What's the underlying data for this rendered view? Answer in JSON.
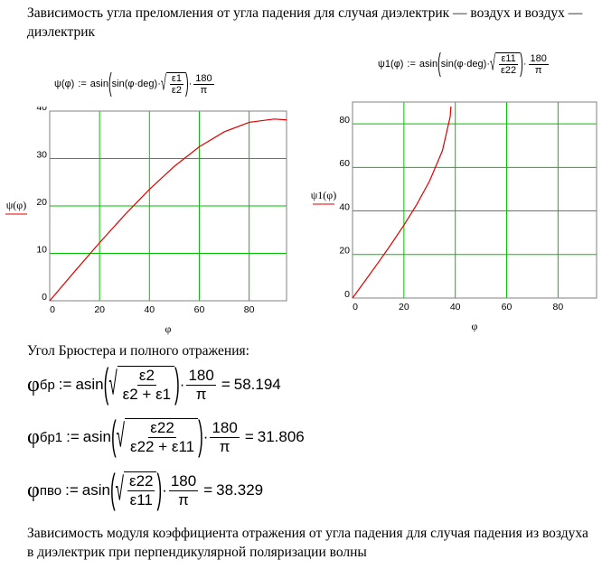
{
  "paragraphs": [
    "Зависимость угла преломления от угла падения для случая диэлектрик — воздух и воздух — диэлектрик",
    "Угол Брюстера и полного отражения:",
    "Зависимость модуля коэффициента отражения от угла падения для случая падения из воздуха в диэлектрик при перпендикулярной поляризации волны"
  ],
  "times": "·",
  "graph_formulas": [
    {
      "lhs": "ψ(φ)",
      "op": ":=",
      "func": "asin",
      "inner": "sin(φ·deg)",
      "num": "ε1",
      "den": "ε2",
      "fnum": "180",
      "fden": "π"
    },
    {
      "lhs": "ψ1(φ)",
      "op": ":=",
      "func": "asin",
      "inner": "sin(φ·deg)",
      "num": "ε11",
      "den": "ε22",
      "fnum": "180",
      "fden": "π"
    }
  ],
  "brewster_formulas": [
    {
      "lhs": "φ",
      "sub": "бр",
      "op": ":=",
      "func": "asin",
      "num": "ε2",
      "den": "ε2 + ε1",
      "fnum": "180",
      "fden": "π",
      "eq": "=",
      "result": 58.194
    },
    {
      "lhs": "φ",
      "sub": "бр1",
      "op": ":=",
      "func": "asin",
      "num": "ε22",
      "den": "ε22 + ε11",
      "fnum": "180",
      "fden": "π",
      "eq": "=",
      "result": 31.806
    },
    {
      "lhs": "φ",
      "sub": "пво",
      "op": ":=",
      "func": "asin",
      "num": "ε22",
      "den": "ε11",
      "fnum": "180",
      "fden": "π",
      "eq": "=",
      "result": 38.329
    }
  ],
  "chart_data": [
    {
      "type": "line",
      "x_label": "φ",
      "y_label": "ψ(φ)",
      "x": [
        0,
        10,
        20,
        30,
        40,
        50,
        60,
        70,
        80,
        90,
        95
      ],
      "values": [
        0,
        6.18,
        12.24,
        18.06,
        23.49,
        28.36,
        32.47,
        35.63,
        37.63,
        38.32,
        38.14
      ],
      "color": "#e00000",
      "xlim": [
        0,
        95
      ],
      "ylim": [
        0,
        40
      ],
      "xticks": [
        0,
        20,
        40,
        60,
        80
      ],
      "yticks": [
        0,
        10,
        20,
        30,
        40
      ],
      "grid": true,
      "grid_color": "#00c000"
    },
    {
      "type": "line",
      "x_label": "φ",
      "y_label": "ψ1(φ)",
      "x": [
        0,
        5,
        10,
        15,
        20,
        25,
        30,
        35,
        38,
        38.3
      ],
      "values": [
        0,
        8.08,
        16.26,
        24.67,
        33.48,
        42.97,
        53.75,
        67.7,
        83.2,
        88
      ],
      "color": "#e00000",
      "xlim": [
        0,
        95
      ],
      "ylim": [
        0,
        90
      ],
      "xticks": [
        0,
        20,
        40,
        60,
        80
      ],
      "yticks": [
        0,
        20,
        40,
        60,
        80
      ],
      "grid": true,
      "grid_color": "#00c000"
    }
  ]
}
